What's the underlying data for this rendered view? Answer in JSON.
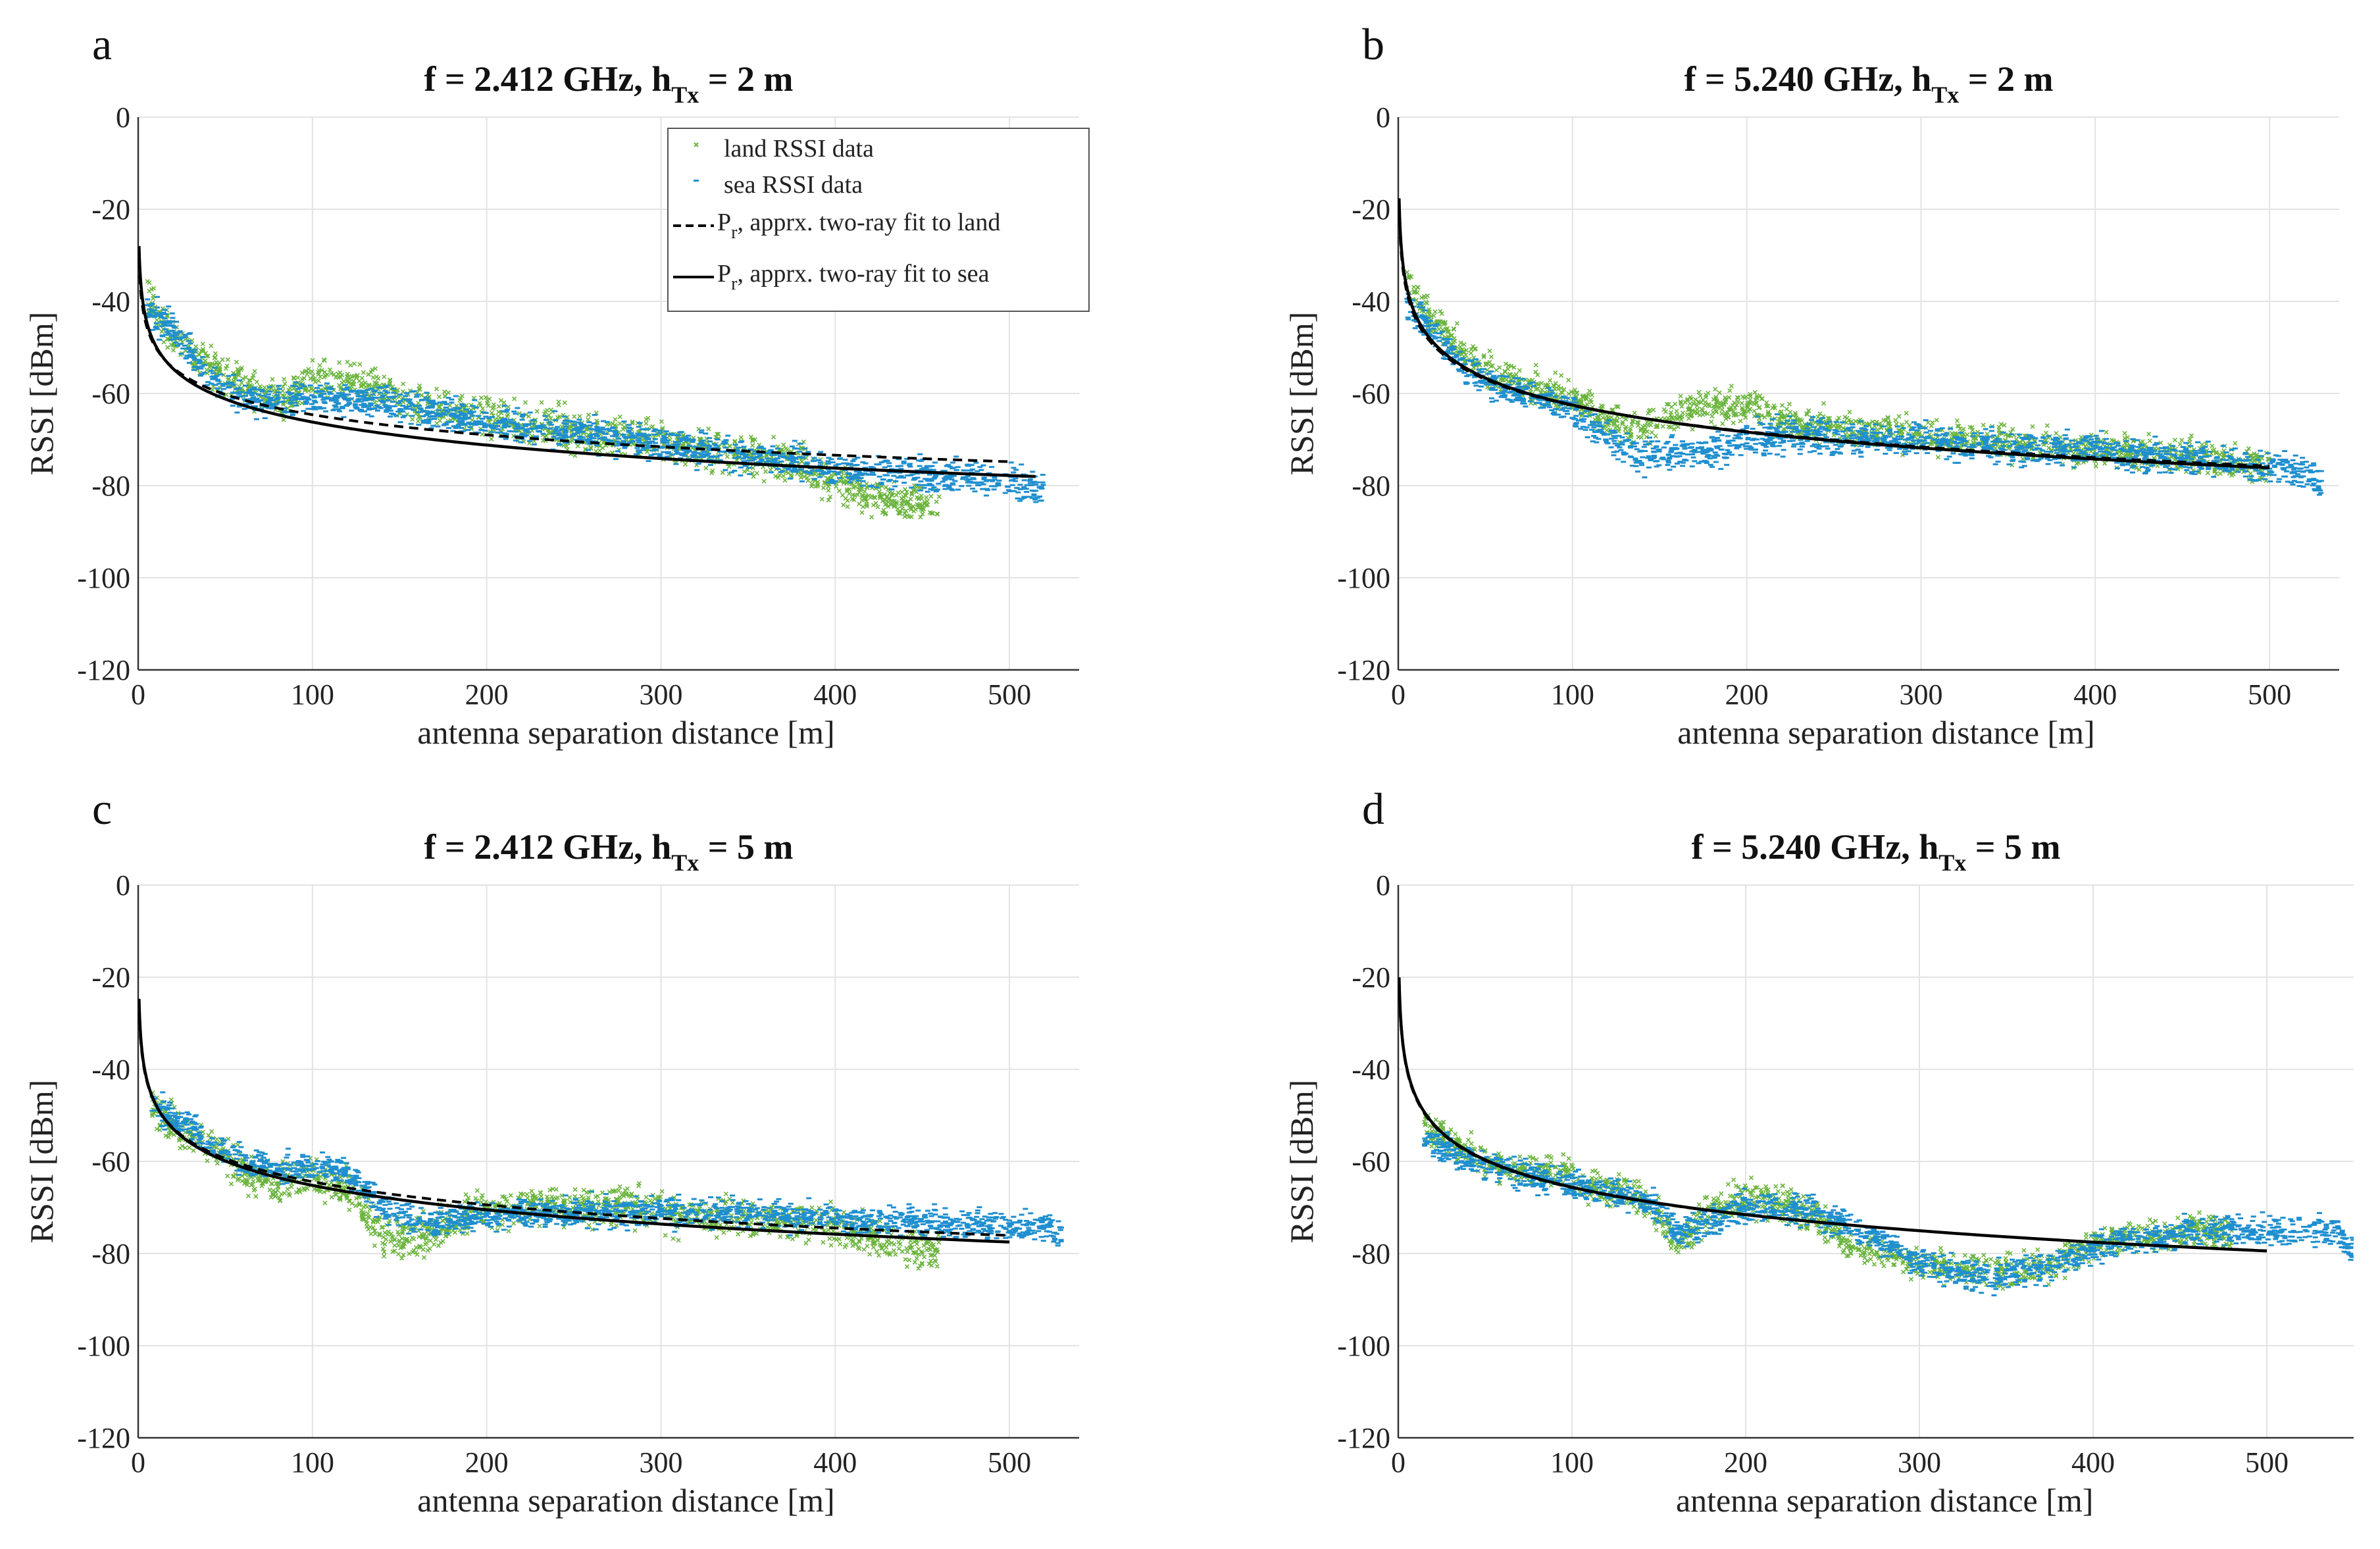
{
  "figure": {
    "shared": {
      "xlabel": "antenna separation distance [m]",
      "ylabel": "RSSI [dBm]",
      "x_ticks": [
        "0",
        "100",
        "200",
        "300",
        "400",
        "500"
      ],
      "y_ticks": [
        "0",
        "-20",
        "-40",
        "-60",
        "-80",
        "-100",
        "-120"
      ]
    },
    "legend": {
      "land": "land RSSI data",
      "sea": "sea RSSI data",
      "fit_land_symbol": "P",
      "fit_land_sub": "r",
      "fit_land_text": ", apprx. two-ray fit to land",
      "fit_sea_symbol": "P",
      "fit_sea_sub": "r",
      "fit_sea_text": ", apprx. two-ray fit to sea"
    },
    "colors": {
      "land": "#6ab43c",
      "sea": "#1f8fcf",
      "fit": "#000000"
    }
  },
  "chart_data": [
    {
      "type": "scatter",
      "panel": "a",
      "title_main": "f = 2.412 GHz, h",
      "title_sub": "Tx",
      "title_tail": " = 2 m",
      "xlim": [
        0,
        540
      ],
      "ylim": [
        -120,
        0
      ],
      "grid": true,
      "legend": "top-right",
      "series": [
        {
          "name": "land RSSI data",
          "x": [
            5,
            20,
            40,
            60,
            80,
            100,
            120,
            140,
            160,
            180,
            200,
            220,
            240,
            260,
            280,
            300,
            320,
            340,
            360,
            380,
            400,
            420,
            440,
            460
          ],
          "y": [
            -38,
            -48,
            -54,
            -58,
            -62,
            -57,
            -58,
            -59,
            -63,
            -64,
            -65,
            -67,
            -67,
            -69,
            -70,
            -70,
            -72,
            -73,
            -74,
            -75,
            -79,
            -82,
            -84,
            -84
          ],
          "spread": 3.0
        },
        {
          "name": "sea RSSI data",
          "x": [
            5,
            20,
            40,
            60,
            80,
            100,
            120,
            140,
            160,
            180,
            200,
            220,
            240,
            260,
            280,
            300,
            320,
            340,
            360,
            380,
            400,
            420,
            440,
            460,
            480,
            500,
            520
          ],
          "y": [
            -42,
            -46,
            -57,
            -61,
            -62,
            -61,
            -61,
            -62,
            -63,
            -65,
            -66,
            -67,
            -68,
            -69,
            -70,
            -71,
            -72,
            -73,
            -74,
            -75,
            -76,
            -77,
            -77,
            -78,
            -78,
            -79,
            -81
          ],
          "spread": 2.5
        },
        {
          "name": "Pr, apprx. two-ray fit to land",
          "model": {
            "a": -35.4,
            "b": -0.0,
            "k": 14.6
          },
          "xrange": [
            0.5,
            500
          ],
          "dash": true
        },
        {
          "name": "Pr, apprx. two-ray fit to sea",
          "model": {
            "a": -33.0,
            "b": 0.0,
            "k": 16.6
          },
          "xrange": [
            0.5,
            515
          ],
          "dash": false
        }
      ]
    },
    {
      "type": "scatter",
      "panel": "b",
      "title_main": "f = 5.240 GHz, h",
      "title_sub": "Tx",
      "title_tail": " = 2 m",
      "xlim": [
        0,
        540
      ],
      "ylim": [
        -120,
        0
      ],
      "grid": true,
      "series": [
        {
          "name": "land RSSI data",
          "x": [
            5,
            20,
            40,
            60,
            80,
            100,
            120,
            140,
            160,
            180,
            200,
            220,
            240,
            260,
            280,
            300,
            320,
            340,
            360,
            380,
            400,
            420,
            440,
            460,
            480,
            500
          ],
          "y": [
            -36,
            -44,
            -52,
            -57,
            -59,
            -61,
            -66,
            -68,
            -64,
            -63,
            -62,
            -66,
            -67,
            -68,
            -68,
            -69,
            -70,
            -70,
            -71,
            -72,
            -72,
            -73,
            -73,
            -74,
            -75,
            -76
          ],
          "spread": 2.5
        },
        {
          "name": "sea RSSI data",
          "x": [
            5,
            20,
            40,
            60,
            80,
            100,
            120,
            140,
            160,
            180,
            200,
            220,
            240,
            260,
            280,
            300,
            320,
            340,
            360,
            380,
            400,
            420,
            440,
            460,
            480,
            500,
            520,
            530
          ],
          "y": [
            -40,
            -47,
            -55,
            -59,
            -61,
            -64,
            -69,
            -74,
            -73,
            -72,
            -70,
            -69,
            -69,
            -70,
            -70,
            -70,
            -71,
            -71,
            -72,
            -72,
            -72,
            -73,
            -74,
            -74,
            -75,
            -76,
            -77,
            -80
          ],
          "spread": 2.5
        },
        {
          "name": "Pr, apprx. two-ray fit to land",
          "model": {
            "a": -25.0,
            "b": 0.0,
            "k": 18.8
          },
          "xrange": [
            0.5,
            500
          ],
          "dash": true
        },
        {
          "name": "Pr, apprx. two-ray fit to sea",
          "model": {
            "a": -23.5,
            "b": 0.0,
            "k": 19.5
          },
          "xrange": [
            0.5,
            500
          ],
          "dash": false
        }
      ]
    },
    {
      "type": "scatter",
      "panel": "c",
      "title_main": "f = 2.412 GHz, h",
      "title_sub": "Tx",
      "title_tail": " = 5 m",
      "xlim": [
        0,
        540
      ],
      "ylim": [
        -120,
        0
      ],
      "grid": true,
      "series": [
        {
          "name": "land RSSI data",
          "x": [
            8,
            20,
            40,
            60,
            80,
            100,
            120,
            140,
            160,
            180,
            200,
            220,
            240,
            260,
            280,
            300,
            320,
            340,
            360,
            380,
            400,
            420,
            440,
            460
          ],
          "y": [
            -48,
            -52,
            -57,
            -62,
            -65,
            -63,
            -66,
            -76,
            -77,
            -73,
            -70,
            -70,
            -70,
            -70,
            -69,
            -71,
            -72,
            -72,
            -72,
            -73,
            -74,
            -76,
            -78,
            -80
          ],
          "spread": 3.0
        },
        {
          "name": "sea RSSI data",
          "x": [
            8,
            20,
            40,
            60,
            80,
            100,
            120,
            140,
            160,
            180,
            200,
            220,
            240,
            260,
            280,
            300,
            320,
            340,
            360,
            380,
            400,
            420,
            440,
            460,
            480,
            500,
            520,
            530
          ],
          "y": [
            -48,
            -50,
            -56,
            -60,
            -62,
            -61,
            -62,
            -70,
            -73,
            -73,
            -72,
            -71,
            -71,
            -71,
            -71,
            -71,
            -71,
            -71,
            -71,
            -72,
            -72,
            -73,
            -73,
            -73,
            -74,
            -74,
            -74,
            -76
          ],
          "spread": 2.2
        },
        {
          "name": "Pr, apprx. two-ray fit to land",
          "model": {
            "a": -31.0,
            "b": 0.0,
            "k": 16.7
          },
          "xrange": [
            0.5,
            500
          ],
          "dash": true
        },
        {
          "name": "Pr, apprx. two-ray fit to sea",
          "model": {
            "a": -30.0,
            "b": 0.0,
            "k": 17.6
          },
          "xrange": [
            0.5,
            500
          ],
          "dash": false
        }
      ]
    },
    {
      "type": "scatter",
      "panel": "d",
      "title_main": "f = 5.240 GHz, h",
      "title_sub": "Tx",
      "title_tail": " = 5 m",
      "xlim": [
        0,
        550
      ],
      "ylim": [
        -120,
        0
      ],
      "grid": true,
      "series": [
        {
          "name": "land RSSI data",
          "x": [
            15,
            30,
            50,
            70,
            90,
            110,
            130,
            150,
            160,
            180,
            200,
            220,
            240,
            260,
            280,
            300,
            320,
            340,
            360,
            380,
            400,
            420,
            440,
            460,
            480
          ],
          "y": [
            -52,
            -56,
            -60,
            -62,
            -62,
            -66,
            -66,
            -72,
            -78,
            -70,
            -68,
            -69,
            -72,
            -78,
            -80,
            -82,
            -83,
            -84,
            -84,
            -82,
            -78,
            -76,
            -76,
            -75,
            -76
          ],
          "spread": 2.5
        },
        {
          "name": "sea RSSI data",
          "x": [
            15,
            30,
            50,
            70,
            90,
            110,
            130,
            150,
            160,
            180,
            200,
            220,
            240,
            260,
            280,
            300,
            320,
            340,
            360,
            380,
            400,
            420,
            440,
            460,
            480,
            500,
            520,
            540,
            550
          ],
          "y": [
            -55,
            -58,
            -61,
            -63,
            -64,
            -66,
            -67,
            -70,
            -76,
            -73,
            -70,
            -70,
            -71,
            -74,
            -78,
            -82,
            -84,
            -85,
            -84,
            -82,
            -79,
            -77,
            -76,
            -75,
            -75,
            -75,
            -75,
            -75,
            -80
          ],
          "spread": 2.3
        },
        {
          "name": "Pr, apprx. two-ray fit to land",
          "model": {
            "a": -26.5,
            "b": 0.0,
            "k": 19.6
          },
          "xrange": [
            0.5,
            500
          ],
          "dash": true
        },
        {
          "name": "Pr, apprx. two-ray fit to sea",
          "model": {
            "a": -26.0,
            "b": 0.0,
            "k": 19.8
          },
          "xrange": [
            0.5,
            500
          ],
          "dash": false
        }
      ]
    }
  ]
}
